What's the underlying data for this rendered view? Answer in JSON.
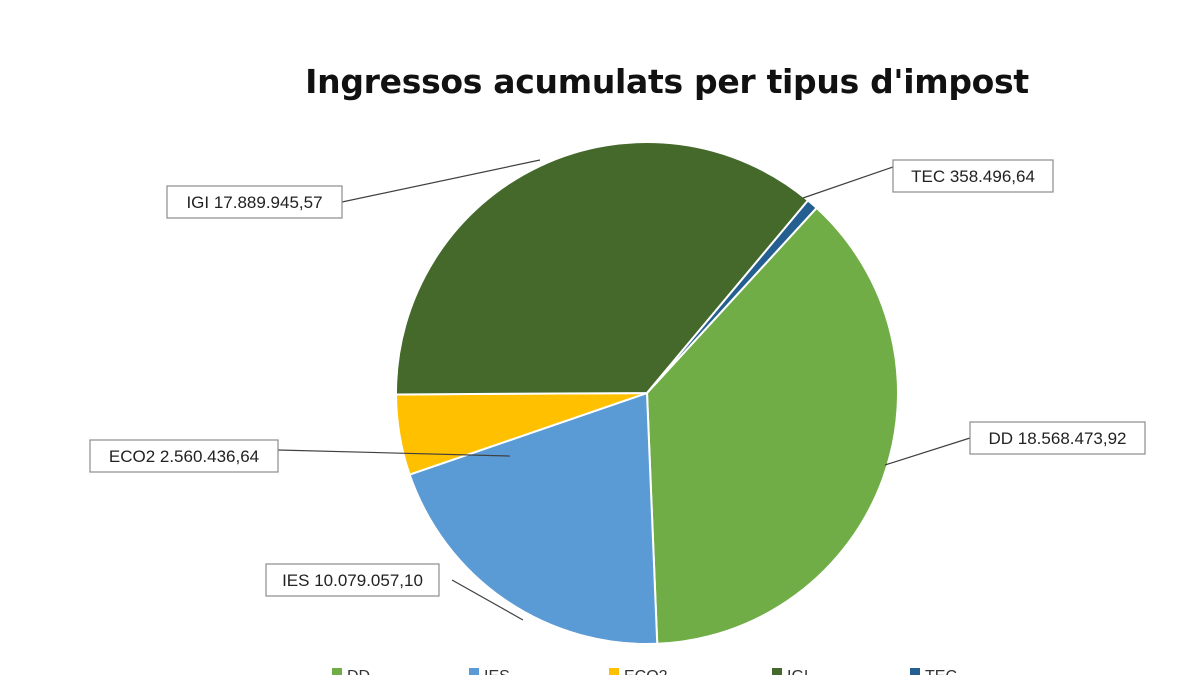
{
  "chart_data": {
    "type": "pie",
    "title": "Ingressos acumulats per tipus d'impost",
    "legend_position": "bottom",
    "slices": [
      {
        "name": "DD",
        "value": 18568473.92,
        "label": "DD 18.568.473,92",
        "color": "#70AD47"
      },
      {
        "name": "IES",
        "value": 10079057.1,
        "label": "IES 10.079.057,10",
        "color": "#5B9BD5"
      },
      {
        "name": "ECO2",
        "value": 2560436.64,
        "label": "ECO2 2.560.436,64",
        "color": "#FFC000"
      },
      {
        "name": "IGI",
        "value": 17889945.57,
        "label": "IGI 17.889.945,57",
        "color": "#44692B"
      },
      {
        "name": "TEC",
        "value": 358496.64,
        "label": "TEC 358.496,64",
        "color": "#255E91"
      }
    ]
  }
}
